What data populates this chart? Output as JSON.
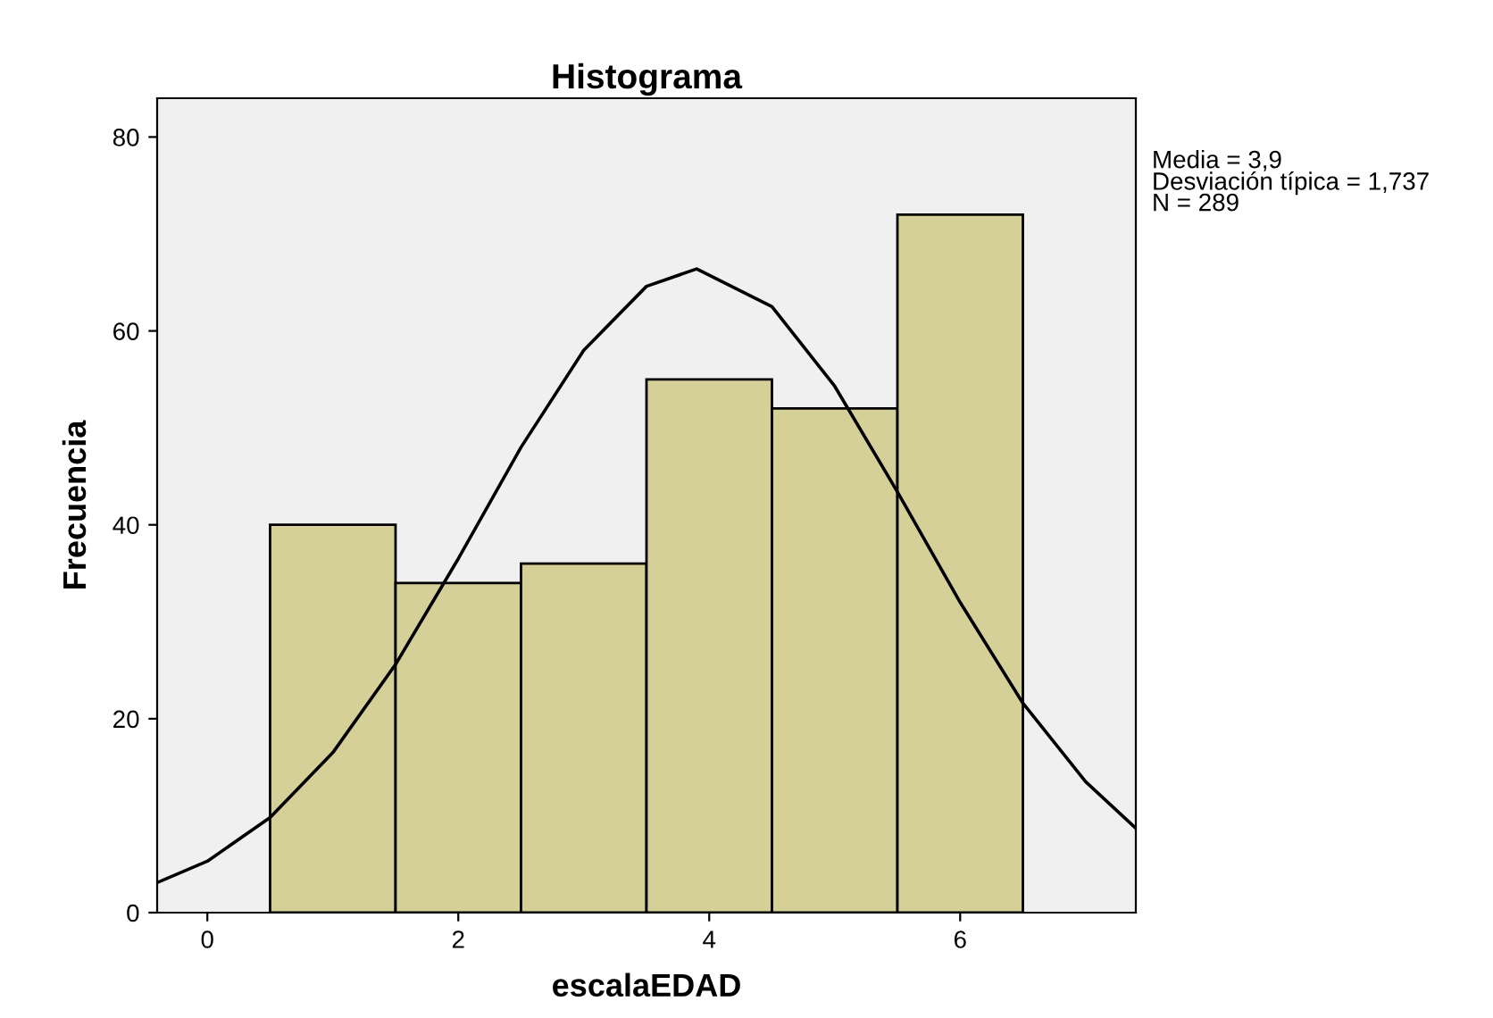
{
  "chart_data": {
    "type": "histogram",
    "title": "Histograma",
    "xlabel": "escalaEDAD",
    "ylabel": "Frecuencia",
    "bins": [
      0.5,
      1.5,
      2.5,
      3.5,
      4.5,
      5.5,
      6.5
    ],
    "values": [
      40,
      34,
      36,
      55,
      52,
      72
    ],
    "color": "#d5cf98",
    "series": [
      {
        "type": "line",
        "color": "#000000",
        "x": [
          -0.4,
          0,
          0.5,
          1,
          1.5,
          2,
          2.5,
          3,
          3.5,
          3.9,
          4.5,
          5,
          5.5,
          6,
          6.5,
          7,
          7.4
        ],
        "values": [
          3.1,
          5.3,
          9.8,
          16.5,
          25.6,
          36.5,
          48.0,
          58.0,
          64.6,
          66.4,
          62.5,
          54.3,
          43.4,
          32.0,
          21.6,
          13.5,
          8.7
        ]
      }
    ],
    "annotations": [
      "Media = 3,9",
      "Desviación típica = 1,737",
      "N = 289"
    ],
    "xlim": [
      -0.4,
      7.4
    ],
    "ylim": [
      0,
      84
    ],
    "xticks": [
      0,
      2,
      4,
      6
    ],
    "yticks": [
      0,
      20,
      40,
      60,
      80
    ],
    "grid": false,
    "legend": false
  }
}
